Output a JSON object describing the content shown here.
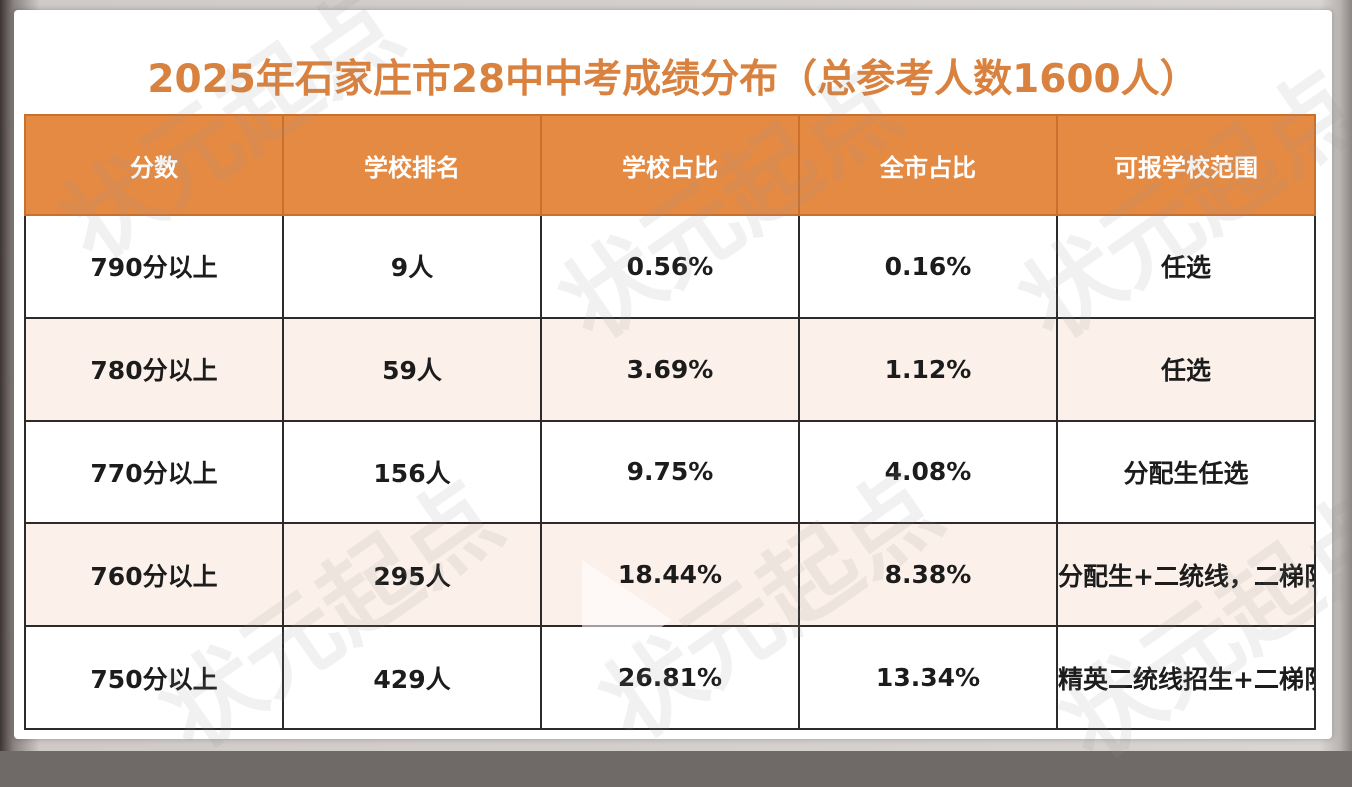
{
  "title": "2025年石家庄市28中中考成绩分布（总参考人数1600人）",
  "headers": [
    "分数",
    "学校排名",
    "学校占比",
    "全市占比",
    "可报学校范围"
  ],
  "rows": [
    {
      "score": "790分以上",
      "rank": "9人",
      "school_pct": "0.56%",
      "city_pct": "0.16%",
      "range": "任选"
    },
    {
      "score": "780分以上",
      "rank": "59人",
      "school_pct": "3.69%",
      "city_pct": "1.12%",
      "range": "任选"
    },
    {
      "score": "770分以上",
      "rank": "156人",
      "school_pct": "9.75%",
      "city_pct": "4.08%",
      "range": "分配生任选"
    },
    {
      "score": "760分以上",
      "rank": "295人",
      "school_pct": "18.44%",
      "city_pct": "8.38%",
      "range": "分配生+二统线，二梯队学校任选"
    },
    {
      "score": "750分以上",
      "rank": "429人",
      "school_pct": "26.81%",
      "city_pct": "13.34%",
      "range": "精英二统线招生+二梯队学校分配生"
    }
  ],
  "watermark": "状元起点",
  "colors": {
    "title": "#d9813e",
    "header_bg": "#e58a43",
    "count_text": "#c0322b",
    "alt_row_bg": "#fcf1ea"
  }
}
